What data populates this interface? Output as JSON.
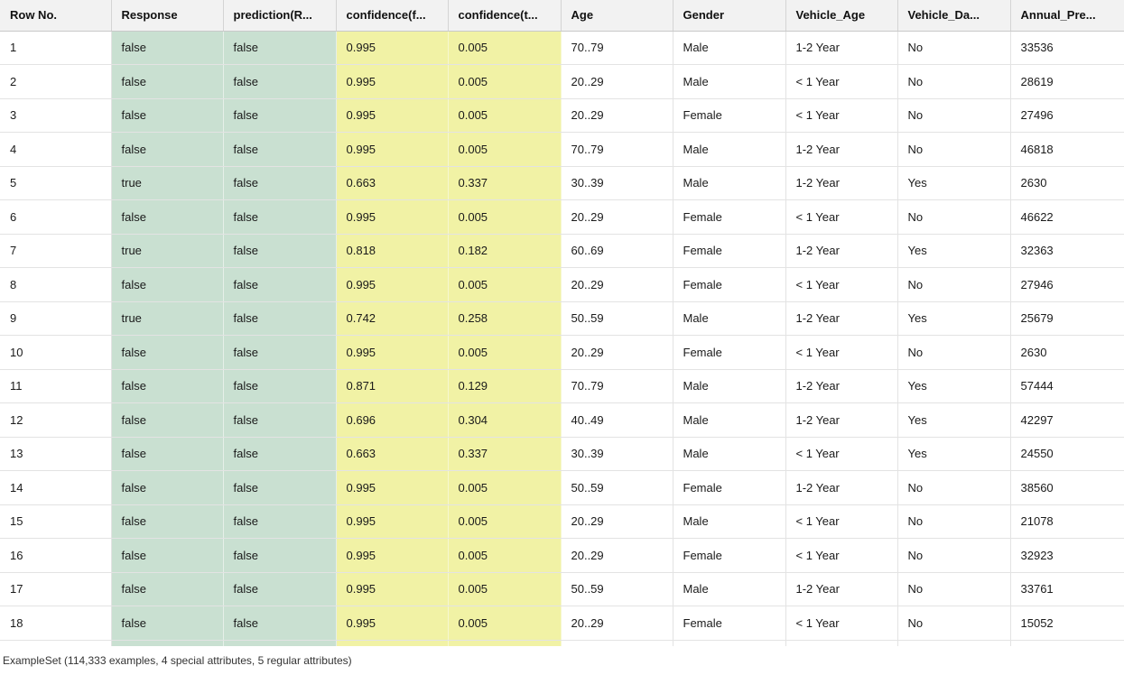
{
  "table": {
    "columns": [
      "Row No.",
      "Response",
      "prediction(R...",
      "confidence(f...",
      "confidence(t...",
      "Age",
      "Gender",
      "Vehicle_Age",
      "Vehicle_Da...",
      "Annual_Pre..."
    ],
    "rows": [
      [
        "1",
        "false",
        "false",
        "0.995",
        "0.005",
        "70..79",
        "Male",
        "1-2 Year",
        "No",
        "33536"
      ],
      [
        "2",
        "false",
        "false",
        "0.995",
        "0.005",
        "20..29",
        "Male",
        "< 1 Year",
        "No",
        "28619"
      ],
      [
        "3",
        "false",
        "false",
        "0.995",
        "0.005",
        "20..29",
        "Female",
        "< 1 Year",
        "No",
        "27496"
      ],
      [
        "4",
        "false",
        "false",
        "0.995",
        "0.005",
        "70..79",
        "Male",
        "1-2 Year",
        "No",
        "46818"
      ],
      [
        "5",
        "true",
        "false",
        "0.663",
        "0.337",
        "30..39",
        "Male",
        "1-2 Year",
        "Yes",
        "2630"
      ],
      [
        "6",
        "false",
        "false",
        "0.995",
        "0.005",
        "20..29",
        "Female",
        "< 1 Year",
        "No",
        "46622"
      ],
      [
        "7",
        "true",
        "false",
        "0.818",
        "0.182",
        "60..69",
        "Female",
        "1-2 Year",
        "Yes",
        "32363"
      ],
      [
        "8",
        "false",
        "false",
        "0.995",
        "0.005",
        "20..29",
        "Female",
        "< 1 Year",
        "No",
        "27946"
      ],
      [
        "9",
        "true",
        "false",
        "0.742",
        "0.258",
        "50..59",
        "Male",
        "1-2 Year",
        "Yes",
        "25679"
      ],
      [
        "10",
        "false",
        "false",
        "0.995",
        "0.005",
        "20..29",
        "Female",
        "< 1 Year",
        "No",
        "2630"
      ],
      [
        "11",
        "false",
        "false",
        "0.871",
        "0.129",
        "70..79",
        "Male",
        "1-2 Year",
        "Yes",
        "57444"
      ],
      [
        "12",
        "false",
        "false",
        "0.696",
        "0.304",
        "40..49",
        "Male",
        "1-2 Year",
        "Yes",
        "42297"
      ],
      [
        "13",
        "false",
        "false",
        "0.663",
        "0.337",
        "30..39",
        "Male",
        "< 1 Year",
        "Yes",
        "24550"
      ],
      [
        "14",
        "false",
        "false",
        "0.995",
        "0.005",
        "50..59",
        "Female",
        "1-2 Year",
        "No",
        "38560"
      ],
      [
        "15",
        "false",
        "false",
        "0.995",
        "0.005",
        "20..29",
        "Male",
        "< 1 Year",
        "No",
        "21078"
      ],
      [
        "16",
        "false",
        "false",
        "0.995",
        "0.005",
        "20..29",
        "Female",
        "< 1 Year",
        "No",
        "32923"
      ],
      [
        "17",
        "false",
        "false",
        "0.995",
        "0.005",
        "50..59",
        "Male",
        "1-2 Year",
        "No",
        "33761"
      ],
      [
        "18",
        "false",
        "false",
        "0.995",
        "0.005",
        "20..29",
        "Female",
        "< 1 Year",
        "No",
        "15052"
      ]
    ],
    "colors": {
      "label_columns": "#c9e0d1",
      "confidence_columns": "#f1f2a5",
      "header_background": "#f2f2f2"
    }
  },
  "status": {
    "summary": "ExampleSet (114,333 examples, 4 special attributes, 5 regular attributes)"
  }
}
